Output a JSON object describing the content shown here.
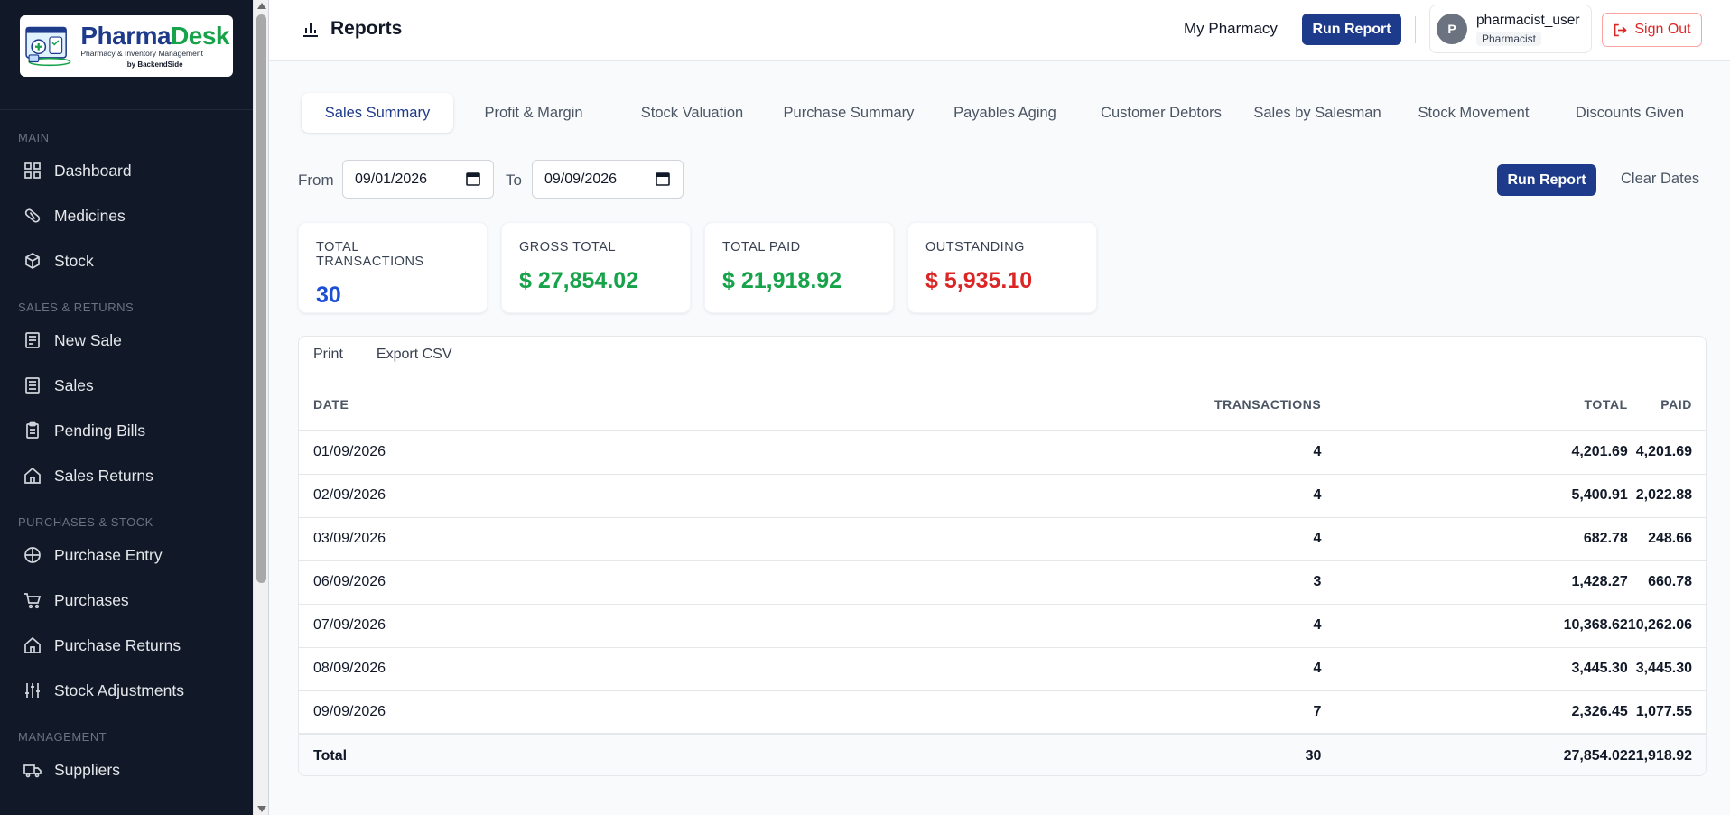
{
  "app": {
    "logo_title_a": "Pharma",
    "logo_title_b": "Desk",
    "logo_subtitle": "Pharmacy & Inventory Management",
    "logo_by": "by BackendSide"
  },
  "sidebar": {
    "sections": [
      {
        "label": "MAIN",
        "items": [
          {
            "label": "Dashboard",
            "icon": "grid-icon"
          },
          {
            "label": "Medicines",
            "icon": "pill-icon"
          },
          {
            "label": "Stock",
            "icon": "cube-icon"
          }
        ]
      },
      {
        "label": "SALES & RETURNS",
        "items": [
          {
            "label": "New Sale",
            "icon": "receipt-icon"
          },
          {
            "label": "Sales",
            "icon": "document-icon"
          },
          {
            "label": "Pending Bills",
            "icon": "clipboard-icon"
          },
          {
            "label": "Sales Returns",
            "icon": "home-icon"
          }
        ]
      },
      {
        "label": "PURCHASES & STOCK",
        "items": [
          {
            "label": "Purchase Entry",
            "icon": "plus-circle-icon"
          },
          {
            "label": "Purchases",
            "icon": "cart-icon"
          },
          {
            "label": "Purchase Returns",
            "icon": "home-icon"
          },
          {
            "label": "Stock Adjustments",
            "icon": "sliders-icon"
          }
        ]
      },
      {
        "label": "MANAGEMENT",
        "items": [
          {
            "label": "Suppliers",
            "icon": "truck-icon"
          }
        ]
      }
    ]
  },
  "header": {
    "title": "Reports",
    "pharmacy": "My Pharmacy",
    "run_report": "Run Report",
    "user_name": "pharmacist_user",
    "user_role": "Pharmacist",
    "avatar_initial": "P",
    "sign_out": "Sign Out"
  },
  "tabs": [
    "Sales Summary",
    "Profit & Margin",
    "Stock Valuation",
    "Purchase Summary",
    "Payables Aging",
    "Customer Debtors",
    "Sales by Salesman",
    "Stock Movement",
    "Discounts Given"
  ],
  "active_tab": 0,
  "filters": {
    "from_label": "From",
    "from_value": "09/01/2026",
    "to_label": "To",
    "to_value": "09/09/2026",
    "run_report": "Run Report",
    "clear_dates": "Clear Dates"
  },
  "stats": [
    {
      "label": "TOTAL TRANSACTIONS",
      "value": "30",
      "color": "#1d4ed8"
    },
    {
      "label": "GROSS TOTAL",
      "value": "$ 27,854.02",
      "color": "#16a34a"
    },
    {
      "label": "TOTAL PAID",
      "value": "$ 21,918.92",
      "color": "#16a34a"
    },
    {
      "label": "OUTSTANDING",
      "value": "$ 5,935.10",
      "color": "#dc2626"
    }
  ],
  "table": {
    "actions": {
      "print": "Print",
      "export": "Export CSV"
    },
    "columns": [
      "DATE",
      "TRANSACTIONS",
      "TOTAL",
      "PAID"
    ],
    "rows": [
      [
        "01/09/2026",
        "4",
        "4,201.69",
        "4,201.69"
      ],
      [
        "02/09/2026",
        "4",
        "5,400.91",
        "2,022.88"
      ],
      [
        "03/09/2026",
        "4",
        "682.78",
        "248.66"
      ],
      [
        "06/09/2026",
        "3",
        "1,428.27",
        "660.78"
      ],
      [
        "07/09/2026",
        "4",
        "10,368.62",
        "10,262.06"
      ],
      [
        "08/09/2026",
        "4",
        "3,445.30",
        "3,445.30"
      ],
      [
        "09/09/2026",
        "7",
        "2,326.45",
        "1,077.55"
      ]
    ],
    "footer": [
      "Total",
      "30",
      "27,854.02",
      "21,918.92"
    ]
  }
}
